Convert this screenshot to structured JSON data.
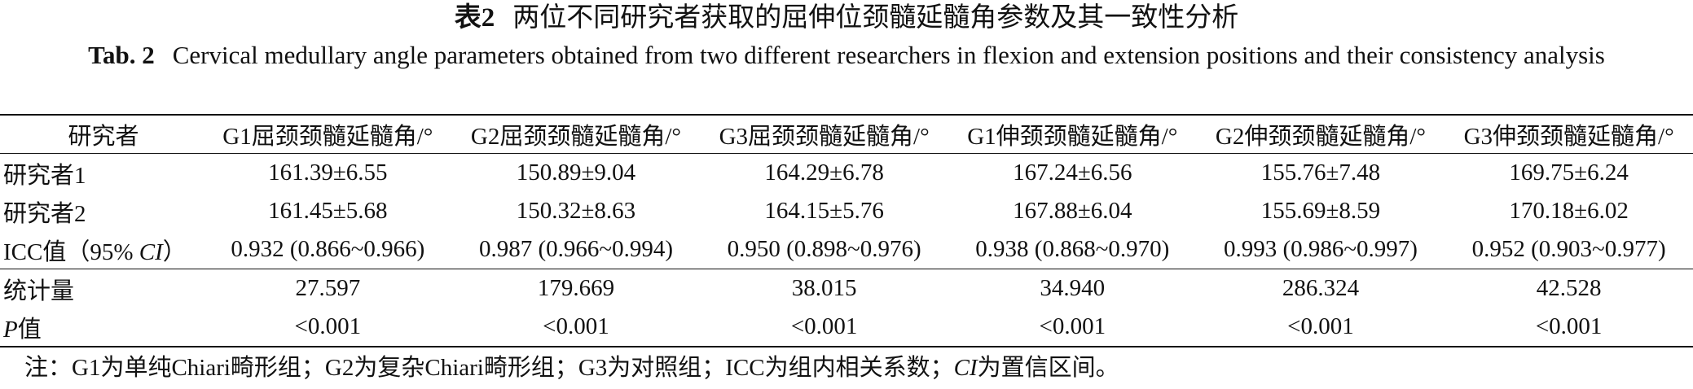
{
  "title_cn": {
    "label": "表2",
    "text": "两位不同研究者获取的屈伸位颈髓延髓角参数及其一致性分析"
  },
  "title_en": {
    "label": "Tab. 2",
    "text": "Cervical medullary angle parameters obtained from two different researchers in flexion and extension positions and their consistency analysis"
  },
  "table": {
    "header": [
      "研究者",
      "G1屈颈颈髓延髓角/°",
      "G2屈颈颈髓延髓角/°",
      "G3屈颈颈髓延髓角/°",
      "G1伸颈颈髓延髓角/°",
      "G2伸颈颈髓延髓角/°",
      "G3伸颈颈髓延髓角/°"
    ],
    "rows": [
      {
        "label": [
          {
            "text": "研究者1"
          }
        ],
        "cells": [
          "161.39±6.55",
          "150.89±9.04",
          "164.29±6.78",
          "167.24±6.56",
          "155.76±7.48",
          "169.75±6.24"
        ]
      },
      {
        "label": [
          {
            "text": "研究者2"
          }
        ],
        "cells": [
          "161.45±5.68",
          "150.32±8.63",
          "164.15±5.76",
          "167.88±6.04",
          "155.69±8.59",
          "170.18±6.02"
        ]
      },
      {
        "label": [
          {
            "text": "ICC值（95% "
          },
          {
            "text": "CI",
            "italic": true
          },
          {
            "text": "）"
          }
        ],
        "cells": [
          "0.932 (0.866~0.966)",
          "0.987 (0.966~0.994)",
          "0.950 (0.898~0.976)",
          "0.938 (0.868~0.970)",
          "0.993 (0.986~0.997)",
          "0.952 (0.903~0.977)"
        ]
      },
      {
        "label": [
          {
            "text": "统计量"
          }
        ],
        "cells": [
          "27.597",
          "179.669",
          "38.015",
          "34.940",
          "286.324",
          "42.528"
        ],
        "rule_above": true
      },
      {
        "label": [
          {
            "text": "P",
            "italic": true
          },
          {
            "text": "值"
          }
        ],
        "cells": [
          "<0.001",
          "<0.001",
          "<0.001",
          "<0.001",
          "<0.001",
          "<0.001"
        ]
      }
    ]
  },
  "note": [
    {
      "text": "注：G1为单纯Chiari畸形组；G2为复杂Chiari畸形组；G3为对照组；ICC为组内相关系数；"
    },
    {
      "text": "CI",
      "italic": true
    },
    {
      "text": "为置信区间。"
    }
  ]
}
